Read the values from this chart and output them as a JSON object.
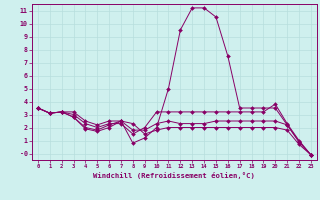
{
  "xlabel": "Windchill (Refroidissement éolien,°C)",
  "background_color": "#cff0ee",
  "grid_color": "#b8dedd",
  "line_color": "#880066",
  "markersize": 2.0,
  "xlim": [
    -0.5,
    23.5
  ],
  "ylim": [
    -0.5,
    11.5
  ],
  "yticks": [
    0,
    1,
    2,
    3,
    4,
    5,
    6,
    7,
    8,
    9,
    10,
    11
  ],
  "xticks": [
    0,
    1,
    2,
    3,
    4,
    5,
    6,
    7,
    8,
    9,
    10,
    11,
    12,
    13,
    14,
    15,
    16,
    17,
    18,
    19,
    20,
    21,
    22,
    23
  ],
  "lines": [
    [
      3.5,
      3.1,
      3.2,
      3.2,
      2.5,
      2.2,
      2.5,
      2.5,
      0.8,
      1.2,
      2.0,
      5.0,
      9.5,
      11.2,
      11.2,
      10.5,
      7.5,
      3.5,
      3.5,
      3.5,
      3.5,
      2.2,
      0.9,
      -0.1
    ],
    [
      3.5,
      3.1,
      3.2,
      3.0,
      2.3,
      2.0,
      2.3,
      2.3,
      1.5,
      2.0,
      3.2,
      3.2,
      3.2,
      3.2,
      3.2,
      3.2,
      3.2,
      3.2,
      3.2,
      3.2,
      3.8,
      2.3,
      1.0,
      -0.1
    ],
    [
      3.5,
      3.1,
      3.2,
      2.8,
      2.0,
      1.8,
      2.2,
      2.5,
      1.8,
      1.8,
      2.3,
      2.5,
      2.3,
      2.3,
      2.3,
      2.5,
      2.5,
      2.5,
      2.5,
      2.5,
      2.5,
      2.2,
      0.9,
      -0.1
    ],
    [
      3.5,
      3.1,
      3.2,
      2.8,
      1.9,
      1.7,
      2.0,
      2.5,
      2.3,
      1.5,
      1.8,
      2.0,
      2.0,
      2.0,
      2.0,
      2.0,
      2.0,
      2.0,
      2.0,
      2.0,
      2.0,
      1.8,
      0.7,
      -0.1
    ]
  ]
}
